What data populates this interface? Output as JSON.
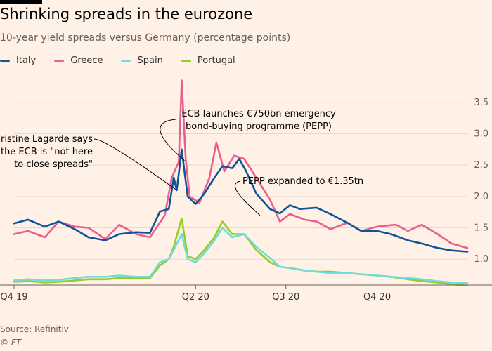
{
  "header": {
    "title": "Shrinking spreads in the eurozone",
    "subtitle": "10-year yield spreads versus Germany (percentage points)"
  },
  "footer": {
    "source": "Source: Refinitiv",
    "credit": "© FT"
  },
  "colors": {
    "background": "#fff1e5",
    "italy": "#0f5499",
    "greece": "#eb5e8d",
    "spain": "#70dcdc",
    "portugal": "#96cc28"
  },
  "chart_data": {
    "type": "line",
    "xlabel": "",
    "ylabel": "",
    "ylim": [
      0.6,
      3.9
    ],
    "y_ticks": [
      1.0,
      1.5,
      2.0,
      2.5,
      3.0,
      3.5
    ],
    "y_tick_labels": [
      "1.0",
      "1.5",
      "2.0",
      "2.5",
      "3.0",
      "3.5"
    ],
    "y_axis_side": "right",
    "grid": true,
    "legend_position": "top-left",
    "x_ticks": [
      {
        "label": "Q4 19",
        "x": "2019-10-01"
      },
      {
        "label": "Q2 20",
        "x": "2020-04-01"
      },
      {
        "label": "Q3 20",
        "x": "2020-07-01"
      },
      {
        "label": "Q4 20",
        "x": "2020-10-01"
      }
    ],
    "xlim": [
      "2019-10-01",
      "2020-12-31"
    ],
    "series": [
      {
        "name": "Italy",
        "color": "#0f5499",
        "points": [
          [
            "2019-10-01",
            1.57
          ],
          [
            "2019-10-15",
            1.63
          ],
          [
            "2019-11-01",
            1.52
          ],
          [
            "2019-11-15",
            1.6
          ],
          [
            "2019-12-01",
            1.48
          ],
          [
            "2019-12-15",
            1.35
          ],
          [
            "2020-01-01",
            1.3
          ],
          [
            "2020-01-15",
            1.4
          ],
          [
            "2020-02-01",
            1.43
          ],
          [
            "2020-02-15",
            1.42
          ],
          [
            "2020-02-25",
            1.76
          ],
          [
            "2020-03-05",
            1.8
          ],
          [
            "2020-03-10",
            2.3
          ],
          [
            "2020-03-13",
            2.1
          ],
          [
            "2020-03-18",
            2.75
          ],
          [
            "2020-03-24",
            2.0
          ],
          [
            "2020-04-01",
            1.88
          ],
          [
            "2020-04-10",
            2.05
          ],
          [
            "2020-04-20",
            2.3
          ],
          [
            "2020-04-28",
            2.48
          ],
          [
            "2020-05-08",
            2.45
          ],
          [
            "2020-05-15",
            2.6
          ],
          [
            "2020-05-22",
            2.4
          ],
          [
            "2020-06-01",
            2.05
          ],
          [
            "2020-06-15",
            1.8
          ],
          [
            "2020-06-25",
            1.73
          ],
          [
            "2020-07-05",
            1.86
          ],
          [
            "2020-07-15",
            1.8
          ],
          [
            "2020-08-01",
            1.82
          ],
          [
            "2020-08-15",
            1.72
          ],
          [
            "2020-09-01",
            1.58
          ],
          [
            "2020-09-15",
            1.45
          ],
          [
            "2020-10-01",
            1.45
          ],
          [
            "2020-10-15",
            1.4
          ],
          [
            "2020-11-01",
            1.3
          ],
          [
            "2020-11-15",
            1.25
          ],
          [
            "2020-12-01",
            1.18
          ],
          [
            "2020-12-15",
            1.14
          ],
          [
            "2020-12-31",
            1.12
          ]
        ]
      },
      {
        "name": "Greece",
        "color": "#eb5e8d",
        "points": [
          [
            "2019-10-01",
            1.4
          ],
          [
            "2019-10-15",
            1.45
          ],
          [
            "2019-11-01",
            1.35
          ],
          [
            "2019-11-15",
            1.6
          ],
          [
            "2019-12-01",
            1.52
          ],
          [
            "2019-12-15",
            1.5
          ],
          [
            "2020-01-01",
            1.32
          ],
          [
            "2020-01-15",
            1.55
          ],
          [
            "2020-02-01",
            1.4
          ],
          [
            "2020-02-15",
            1.35
          ],
          [
            "2020-03-01",
            1.7
          ],
          [
            "2020-03-08",
            2.3
          ],
          [
            "2020-03-15",
            2.55
          ],
          [
            "2020-03-18",
            3.85
          ],
          [
            "2020-03-22",
            2.6
          ],
          [
            "2020-03-26",
            2.0
          ],
          [
            "2020-04-05",
            1.9
          ],
          [
            "2020-04-15",
            2.3
          ],
          [
            "2020-04-22",
            2.86
          ],
          [
            "2020-04-30",
            2.4
          ],
          [
            "2020-05-10",
            2.65
          ],
          [
            "2020-05-20",
            2.6
          ],
          [
            "2020-06-01",
            2.3
          ],
          [
            "2020-06-15",
            1.95
          ],
          [
            "2020-06-25",
            1.6
          ],
          [
            "2020-07-05",
            1.72
          ],
          [
            "2020-07-20",
            1.63
          ],
          [
            "2020-08-01",
            1.6
          ],
          [
            "2020-08-15",
            1.48
          ],
          [
            "2020-09-01",
            1.58
          ],
          [
            "2020-09-15",
            1.45
          ],
          [
            "2020-10-01",
            1.52
          ],
          [
            "2020-10-20",
            1.55
          ],
          [
            "2020-11-01",
            1.45
          ],
          [
            "2020-11-15",
            1.55
          ],
          [
            "2020-12-01",
            1.4
          ],
          [
            "2020-12-15",
            1.25
          ],
          [
            "2020-12-31",
            1.18
          ]
        ]
      },
      {
        "name": "Spain",
        "color": "#70dcdc",
        "points": [
          [
            "2019-10-01",
            0.66
          ],
          [
            "2019-10-15",
            0.68
          ],
          [
            "2019-11-01",
            0.66
          ],
          [
            "2019-11-15",
            0.67
          ],
          [
            "2019-12-01",
            0.7
          ],
          [
            "2019-12-15",
            0.72
          ],
          [
            "2020-01-01",
            0.72
          ],
          [
            "2020-01-15",
            0.74
          ],
          [
            "2020-02-01",
            0.72
          ],
          [
            "2020-02-15",
            0.72
          ],
          [
            "2020-02-25",
            0.95
          ],
          [
            "2020-03-05",
            1.0
          ],
          [
            "2020-03-10",
            1.15
          ],
          [
            "2020-03-18",
            1.4
          ],
          [
            "2020-03-24",
            1.0
          ],
          [
            "2020-04-01",
            0.95
          ],
          [
            "2020-04-10",
            1.1
          ],
          [
            "2020-04-20",
            1.3
          ],
          [
            "2020-04-28",
            1.5
          ],
          [
            "2020-05-08",
            1.35
          ],
          [
            "2020-05-20",
            1.4
          ],
          [
            "2020-06-01",
            1.2
          ],
          [
            "2020-06-15",
            1.02
          ],
          [
            "2020-06-25",
            0.88
          ],
          [
            "2020-07-05",
            0.86
          ],
          [
            "2020-07-20",
            0.82
          ],
          [
            "2020-08-01",
            0.8
          ],
          [
            "2020-08-15",
            0.78
          ],
          [
            "2020-09-01",
            0.78
          ],
          [
            "2020-09-15",
            0.76
          ],
          [
            "2020-10-01",
            0.74
          ],
          [
            "2020-10-15",
            0.72
          ],
          [
            "2020-11-01",
            0.7
          ],
          [
            "2020-11-15",
            0.68
          ],
          [
            "2020-12-01",
            0.65
          ],
          [
            "2020-12-15",
            0.63
          ],
          [
            "2020-12-31",
            0.62
          ]
        ]
      },
      {
        "name": "Portugal",
        "color": "#96cc28",
        "points": [
          [
            "2019-10-01",
            0.64
          ],
          [
            "2019-10-15",
            0.65
          ],
          [
            "2019-11-01",
            0.63
          ],
          [
            "2019-11-15",
            0.64
          ],
          [
            "2019-12-01",
            0.66
          ],
          [
            "2019-12-15",
            0.68
          ],
          [
            "2020-01-01",
            0.68
          ],
          [
            "2020-01-15",
            0.7
          ],
          [
            "2020-02-01",
            0.7
          ],
          [
            "2020-02-15",
            0.7
          ],
          [
            "2020-02-25",
            0.9
          ],
          [
            "2020-03-05",
            1.0
          ],
          [
            "2020-03-10",
            1.2
          ],
          [
            "2020-03-18",
            1.65
          ],
          [
            "2020-03-24",
            1.05
          ],
          [
            "2020-04-01",
            1.0
          ],
          [
            "2020-04-10",
            1.15
          ],
          [
            "2020-04-20",
            1.35
          ],
          [
            "2020-04-28",
            1.6
          ],
          [
            "2020-05-08",
            1.4
          ],
          [
            "2020-05-20",
            1.4
          ],
          [
            "2020-06-01",
            1.15
          ],
          [
            "2020-06-15",
            0.95
          ],
          [
            "2020-06-25",
            0.88
          ],
          [
            "2020-07-05",
            0.86
          ],
          [
            "2020-07-20",
            0.82
          ],
          [
            "2020-08-01",
            0.8
          ],
          [
            "2020-08-15",
            0.8
          ],
          [
            "2020-09-01",
            0.78
          ],
          [
            "2020-09-15",
            0.76
          ],
          [
            "2020-10-01",
            0.74
          ],
          [
            "2020-10-15",
            0.72
          ],
          [
            "2020-11-01",
            0.68
          ],
          [
            "2020-11-15",
            0.65
          ],
          [
            "2020-12-01",
            0.63
          ],
          [
            "2020-12-15",
            0.6
          ],
          [
            "2020-12-31",
            0.58
          ]
        ]
      }
    ],
    "annotations": [
      {
        "name": "lagarde",
        "lines": [
          "Christine Lagarde says",
          "the ECB is \"not here",
          "to close spreads\""
        ],
        "target": [
          "2020-03-13",
          2.1
        ]
      },
      {
        "name": "pepp-launch",
        "lines": [
          "ECB launches €750bn emergency",
          "bond-buying programme (PEPP)"
        ],
        "target": [
          "2020-03-18",
          2.55
        ]
      },
      {
        "name": "pepp-expanded",
        "lines": [
          "PEPP expanded to €1.35tn"
        ],
        "target": [
          "2020-06-05",
          1.7
        ]
      }
    ]
  }
}
